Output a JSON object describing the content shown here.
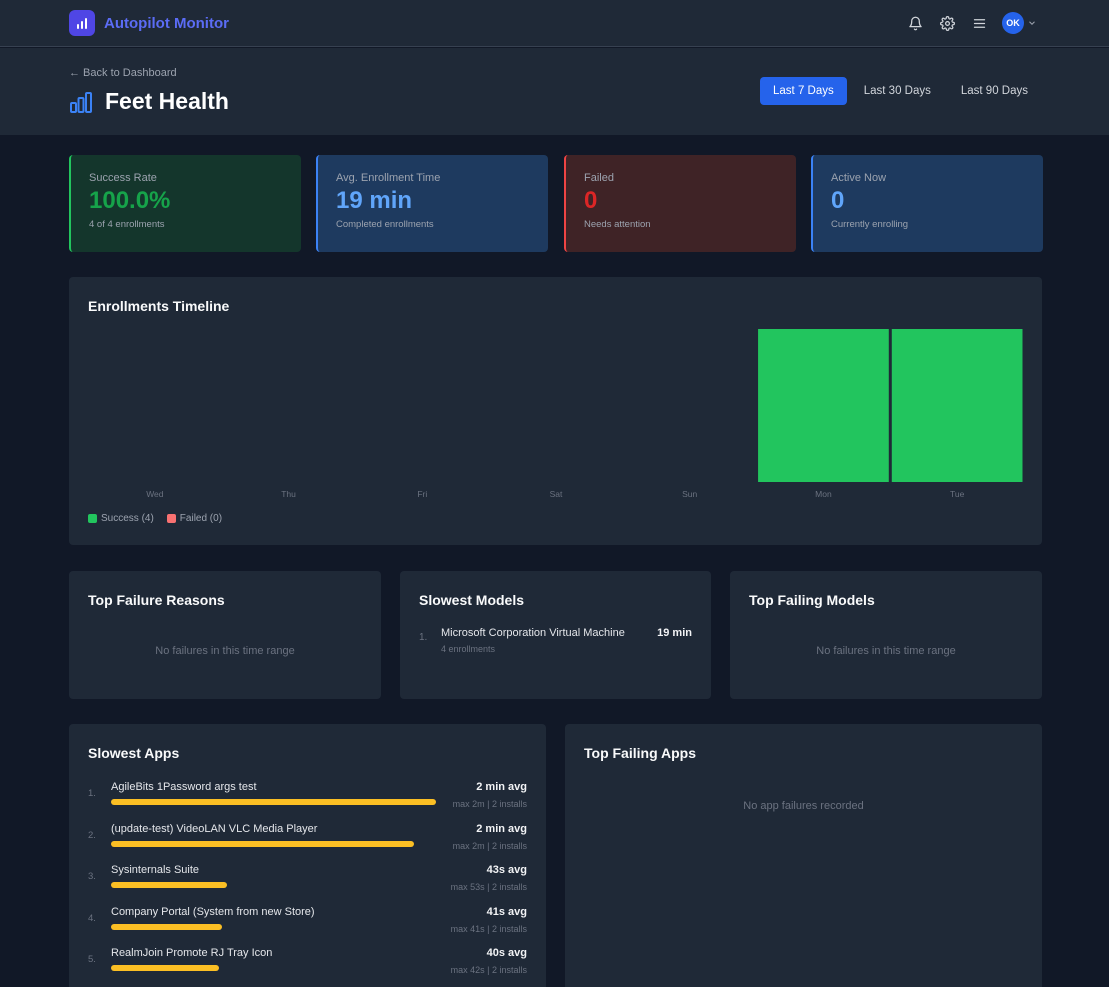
{
  "app": {
    "title": "Autopilot Monitor",
    "user_initials": "OK"
  },
  "icons": {
    "logo": "bar-chart-icon",
    "notifications": "bell-icon",
    "settings": "gear-icon",
    "menu": "hamburger-menu-icon",
    "user_menu": "chevron-down-icon",
    "title": "bar-chart-icon"
  },
  "header": {
    "back_label": "← Back to Dashboard",
    "title": "Feet Health",
    "ranges": [
      "Last 7 Days",
      "Last 30 Days",
      "Last 90 Days"
    ],
    "active_range": "Last 7 Days"
  },
  "stats": [
    {
      "label": "Success Rate",
      "value": "100.0%",
      "sub": "4 of 4 enrollments"
    },
    {
      "label": "Avg. Enrollment Time",
      "value": "19 min",
      "sub": "Completed enrollments"
    },
    {
      "label": "Failed",
      "value": "0",
      "sub": "Needs attention"
    },
    {
      "label": "Active Now",
      "value": "0",
      "sub": "Currently enrolling"
    }
  ],
  "colors": {
    "success": "#22c55e",
    "failed": "#f87171",
    "accent": "#2563eb",
    "bar": "#fbbf24"
  },
  "timeline": {
    "title": "Enrollments Timeline",
    "legend": {
      "success": "Success (4)",
      "failed": "Failed (0)"
    }
  },
  "chart_data": {
    "type": "bar",
    "stacked": true,
    "categories": [
      "Wed",
      "Thu",
      "Fri",
      "Sat",
      "Sun",
      "Mon",
      "Tue"
    ],
    "series": [
      {
        "name": "Success",
        "values": [
          0,
          0,
          0,
          0,
          0,
          2,
          2
        ]
      },
      {
        "name": "Failed",
        "values": [
          0,
          0,
          0,
          0,
          0,
          0,
          0
        ]
      }
    ],
    "ylim": [
      0,
      2
    ],
    "grid": false,
    "legend": "bottom-left"
  },
  "failure_reasons": {
    "title": "Top Failure Reasons",
    "empty": "No failures in this time range"
  },
  "slowest_models": {
    "title": "Slowest Models",
    "items": [
      {
        "rank": "1.",
        "name": "Microsoft Corporation Virtual Machine",
        "meta": "4 enrollments",
        "time": "19 min"
      }
    ]
  },
  "failing_models": {
    "title": "Top Failing Models",
    "empty": "No failures in this time range"
  },
  "slowest_apps": {
    "title": "Slowest Apps",
    "items": [
      {
        "rank": "1.",
        "name": "AgileBits 1Password args test",
        "avg": "2 min avg",
        "meta": "max 2m | 2 installs",
        "avg_seconds": 120
      },
      {
        "rank": "2.",
        "name": "(update-test) VideoLAN VLC Media Player",
        "avg": "2 min avg",
        "meta": "max 2m | 2 installs",
        "avg_seconds": 112
      },
      {
        "rank": "3.",
        "name": "Sysinternals Suite",
        "avg": "43s avg",
        "meta": "max 53s | 2 installs",
        "avg_seconds": 43
      },
      {
        "rank": "4.",
        "name": "Company Portal (System from new Store)",
        "avg": "41s avg",
        "meta": "max 41s | 2 installs",
        "avg_seconds": 41
      },
      {
        "rank": "5.",
        "name": "RealmJoin Promote RJ Tray Icon",
        "avg": "40s avg",
        "meta": "max 42s | 2 installs",
        "avg_seconds": 40
      }
    ]
  },
  "failing_apps": {
    "title": "Top Failing Apps",
    "empty": "No app failures recorded"
  }
}
